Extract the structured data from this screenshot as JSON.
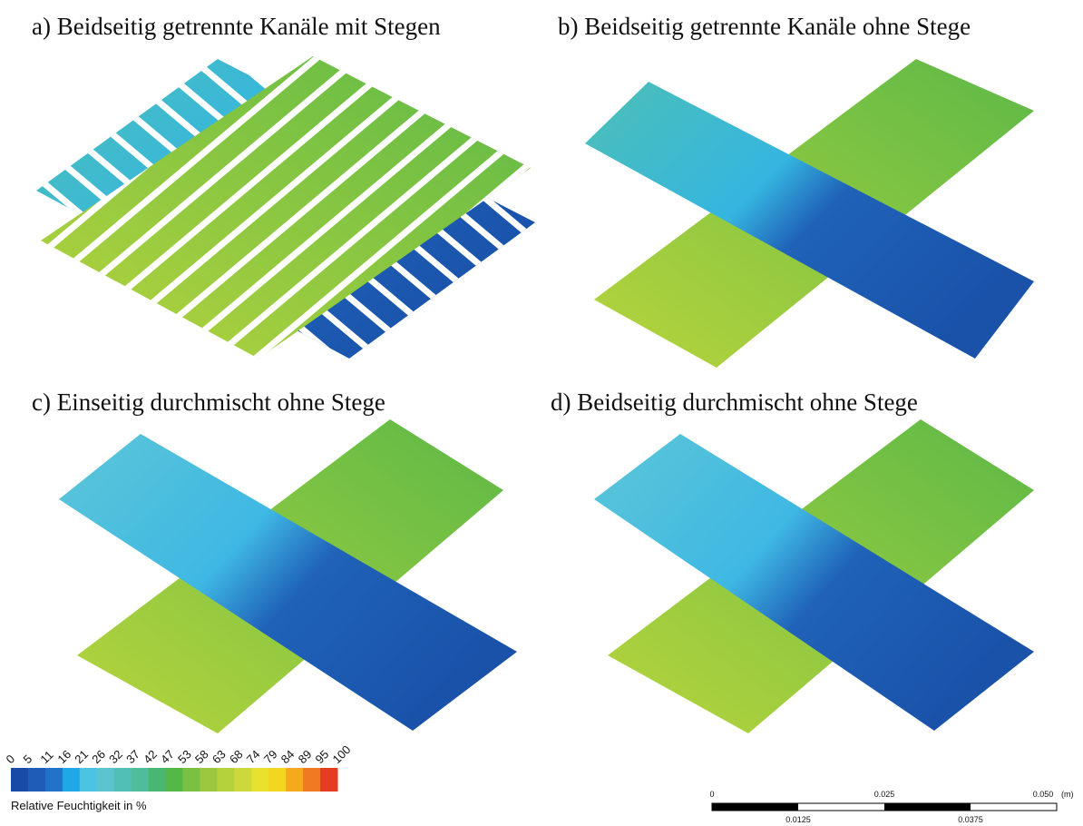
{
  "panels": [
    {
      "title": "a) Beidseitig getrennte Kanäle mit Stegen"
    },
    {
      "title": "b) Beidseitig getrennte Kanäle ohne Stege"
    },
    {
      "title": "c) Einseitig durchmischt ohne Stege"
    },
    {
      "title": "d) Beidseitig durchmischt ohne Stege"
    }
  ],
  "legend": {
    "title": "Relative Feuchtigkeit in %",
    "ticks": [
      "0",
      "5",
      "11",
      "16",
      "21",
      "26",
      "32",
      "37",
      "42",
      "47",
      "53",
      "58",
      "63",
      "68",
      "74",
      "79",
      "84",
      "89",
      "95",
      "100"
    ],
    "colors": [
      "#1a4aa8",
      "#1f5cb8",
      "#2173c9",
      "#1ea8e8",
      "#4dc3e3",
      "#5cc4cf",
      "#52bfb4",
      "#4fbc9a",
      "#49b672",
      "#53b847",
      "#79c043",
      "#9ac93f",
      "#b5d23d",
      "#cdd93b",
      "#e8e22f",
      "#f3d620",
      "#f5aa1e",
      "#ef7a22",
      "#e43d22"
    ]
  },
  "scale_bar": {
    "top_labels": [
      "0",
      "0.025",
      "0.050"
    ],
    "unit": "(m)",
    "bottom_labels": [
      "0.0125",
      "0.0375"
    ]
  }
}
